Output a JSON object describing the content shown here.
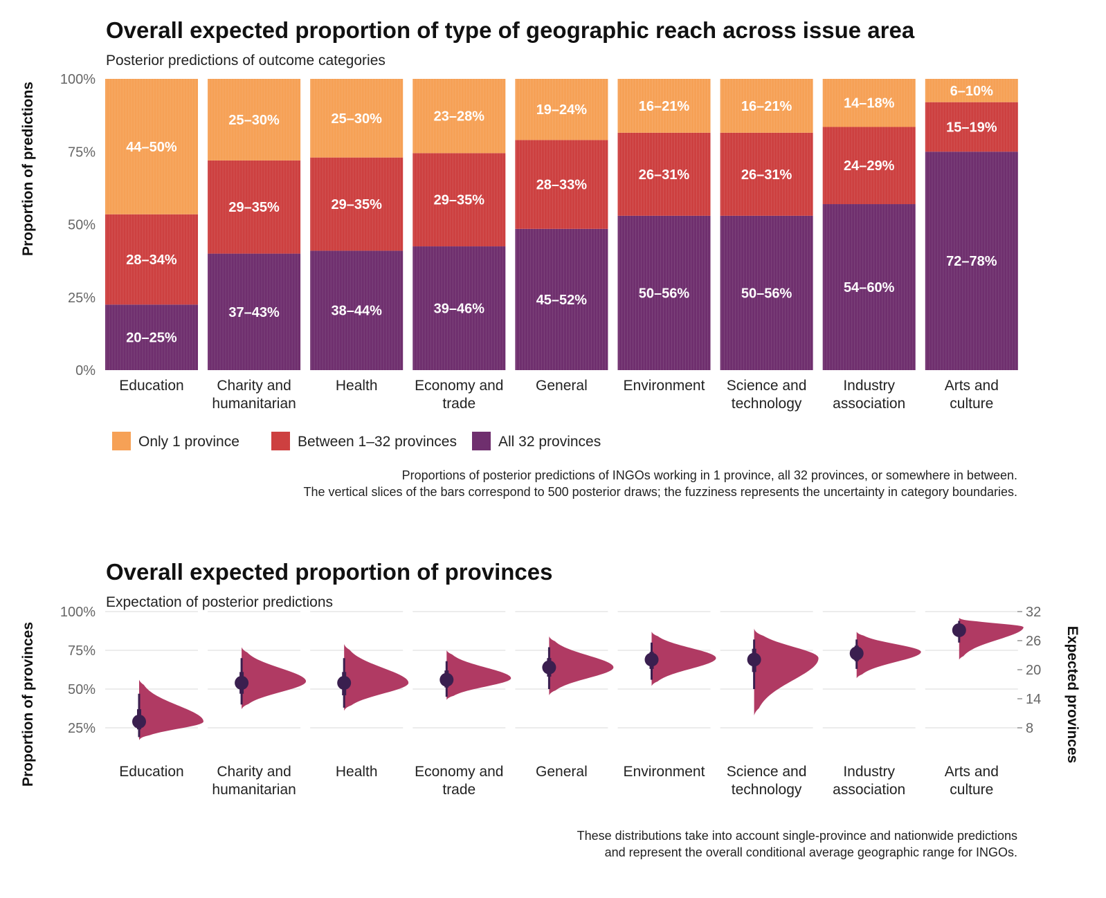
{
  "chart_data": [
    {
      "type": "bar",
      "stacked": true,
      "title": "Overall expected proportion of type of geographic reach across issue area",
      "subtitle": "Posterior predictions of outcome categories",
      "ylabel": "Proportion of predictions",
      "ylim": [
        0,
        1
      ],
      "yticks": [
        "0%",
        "25%",
        "50%",
        "75%",
        "100%"
      ],
      "categories": [
        "Education",
        "Charity and\nhumanitarian",
        "Health",
        "Economy and\ntrade",
        "General",
        "Environment",
        "Science and\ntechnology",
        "Industry\nassociation",
        "Arts and\nculture"
      ],
      "series": [
        {
          "name": "All 32 provinces",
          "color": "#6f2f6e",
          "values": [
            0.225,
            0.4,
            0.41,
            0.425,
            0.485,
            0.53,
            0.53,
            0.57,
            0.75
          ],
          "labels": [
            "20–25%",
            "37–43%",
            "38–44%",
            "39–46%",
            "45–52%",
            "50–56%",
            "50–56%",
            "54–60%",
            "72–78%"
          ]
        },
        {
          "name": "Between 1–32 provinces",
          "color": "#cd4040",
          "values": [
            0.31,
            0.32,
            0.32,
            0.32,
            0.305,
            0.285,
            0.285,
            0.265,
            0.17
          ],
          "labels": [
            "28–34%",
            "29–35%",
            "29–35%",
            "29–35%",
            "28–33%",
            "26–31%",
            "26–31%",
            "24–29%",
            "15–19%"
          ]
        },
        {
          "name": "Only 1 province",
          "color": "#f6a156",
          "values": [
            0.465,
            0.28,
            0.27,
            0.255,
            0.21,
            0.185,
            0.185,
            0.165,
            0.08
          ],
          "labels": [
            "44–50%",
            "25–30%",
            "25–30%",
            "23–28%",
            "19–24%",
            "16–21%",
            "16–21%",
            "14–18%",
            "6–10%"
          ]
        }
      ],
      "legend": {
        "placement": "bottom-left",
        "entries": [
          {
            "label": "Only 1 province",
            "color": "#f6a156"
          },
          {
            "label": "Between 1–32 provinces",
            "color": "#cd4040"
          },
          {
            "label": "All 32 provinces",
            "color": "#6f2f6e"
          }
        ]
      },
      "caption": [
        "Proportions of posterior predictions of INGOs working in 1 province, all 32 provinces, or somewhere in between.",
        "The vertical slices of the bars correspond to 500 posterior draws; the fuzziness represents the uncertainty in category boundaries."
      ]
    },
    {
      "type": "halfeye",
      "title": "Overall expected proportion of provinces",
      "subtitle": "Expectation of posterior predictions",
      "ylabel": "Proportion of provinces",
      "ylabel_right": "Expected provinces",
      "ylim": [
        0.12,
        1.0
      ],
      "yticks": [
        "25%",
        "50%",
        "75%",
        "100%"
      ],
      "yticks_right": [
        "8",
        "14",
        "20",
        "26",
        "32"
      ],
      "categories": [
        "Education",
        "Charity and\nhumanitarian",
        "Health",
        "Economy and\ntrade",
        "General",
        "Environment",
        "Science and\ntechnology",
        "Industry\nassociation",
        "Arts and\nculture"
      ],
      "point_color": "#3a1f4f",
      "density_color": "#b03a63",
      "points": [
        {
          "median": 0.29,
          "q66": [
            0.24,
            0.37
          ],
          "q95": [
            0.19,
            0.47
          ],
          "range": [
            0.17,
            0.56
          ],
          "peak": 0.29
        },
        {
          "median": 0.54,
          "q66": [
            0.47,
            0.61
          ],
          "q95": [
            0.4,
            0.7
          ],
          "range": [
            0.37,
            0.77
          ],
          "peak": 0.55
        },
        {
          "median": 0.54,
          "q66": [
            0.46,
            0.61
          ],
          "q95": [
            0.38,
            0.7
          ],
          "range": [
            0.36,
            0.79
          ],
          "peak": 0.54
        },
        {
          "median": 0.56,
          "q66": [
            0.51,
            0.62
          ],
          "q95": [
            0.45,
            0.68
          ],
          "range": [
            0.43,
            0.75
          ],
          "peak": 0.57
        },
        {
          "median": 0.64,
          "q66": [
            0.58,
            0.7
          ],
          "q95": [
            0.5,
            0.77
          ],
          "range": [
            0.46,
            0.84
          ],
          "peak": 0.64
        },
        {
          "median": 0.69,
          "q66": [
            0.63,
            0.74
          ],
          "q95": [
            0.56,
            0.8
          ],
          "range": [
            0.52,
            0.87
          ],
          "peak": 0.7
        },
        {
          "median": 0.69,
          "q66": [
            0.61,
            0.76
          ],
          "q95": [
            0.5,
            0.82
          ],
          "range": [
            0.33,
            0.89
          ],
          "peak": 0.7
        },
        {
          "median": 0.73,
          "q66": [
            0.68,
            0.78
          ],
          "q95": [
            0.63,
            0.82
          ],
          "range": [
            0.57,
            0.87
          ],
          "peak": 0.74
        },
        {
          "median": 0.88,
          "q66": [
            0.85,
            0.92
          ],
          "q95": [
            0.8,
            0.94
          ],
          "range": [
            0.69,
            0.96
          ],
          "peak": 0.9
        }
      ],
      "caption": [
        "These distributions take into account single-province and nationwide predictions",
        "and represent the overall conditional average geographic range for INGOs."
      ]
    }
  ]
}
